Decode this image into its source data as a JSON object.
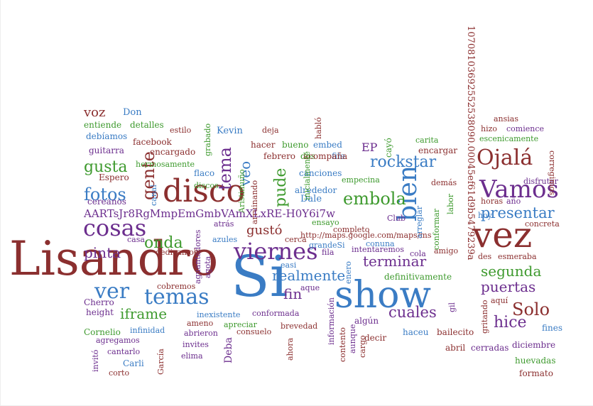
{
  "palette": {
    "red": "#8B2F2F",
    "blue": "#3A7CC4",
    "purple": "#6C2E8E",
    "green": "#3E9A2E"
  },
  "words": [
    "Lisandro",
    "Si",
    "show",
    "vez",
    "disco",
    "cosas",
    "viernes",
    "bien",
    "temas",
    "ver",
    "rockstar",
    "Ojalá",
    "Vamos",
    "presentar",
    "embola",
    "gusta",
    "fotos",
    "tema",
    "gente",
    "onda",
    "pinta",
    "pude",
    "terminar",
    "segunda",
    "puertas",
    "realmente",
    "iframe",
    "fin",
    "cuales",
    "Solo",
    "hice",
    "veo",
    "gustó",
    "voz",
    "Don",
    "entiende",
    "detalles",
    "estilo",
    "Kevin",
    "deja",
    "debíamos",
    "facebook",
    "guitarra",
    "encargado",
    "Espero",
    "hermosamente",
    "grabado",
    "AARTsJr8RgMmpEmGmbVAmXLxRE-H0Y6i7w",
    "http://maps.google.com/maps/ms",
    "10708103692552538090.00045ef61d9b5479239a",
    "Cherro",
    "height",
    "Cornelio",
    "agregamos",
    "cantarlo",
    "Carli",
    "corto",
    "García",
    "invitó",
    "infinidad",
    "abrieron",
    "elima",
    "invites",
    "consuelo",
    "ameno",
    "inexistente",
    "apreciar",
    "conformada",
    "brevedad",
    "información",
    "contento",
    "aunque",
    "cargo",
    "ahora",
    "algún",
    "decir",
    "haceu",
    "bailecito",
    "abril",
    "cerradas",
    "diciembre",
    "huevadas",
    "formato",
    "fines",
    "aquí",
    "gritando",
    "gil",
    "amigo",
    "des",
    "esmeraba",
    "cola",
    "intentaremos",
    "fila",
    "conuna",
    "completo",
    "grandeSi",
    "cerca",
    "azules",
    "atrás",
    "aguantadores",
    "agota",
    "arruinando",
    "Aristimuño",
    "flaco",
    "discos",
    "cereanos",
    "canal",
    "casa",
    "dedicamos",
    "ie",
    "cobremos",
    "febrero",
    "hacer",
    "bueno",
    "embed",
    "dos",
    "file",
    "ensayo",
    "Dale",
    "alrededor",
    "empecina",
    "canciones",
    "acompaña",
    "EP",
    "cayó",
    "encargar",
    "carita",
    "demás",
    "labor",
    "hoy",
    "horas",
    "año",
    "concreta",
    "ansias",
    "hizo",
    "comience",
    "escenicamente",
    "disfrutar",
    "corregimos",
    "Club",
    "arreglar",
    "conformar",
    "Deba",
    "aque",
    "enero",
    "habló",
    "inicialmente",
    "definitivamente",
    "easi"
  ]
}
